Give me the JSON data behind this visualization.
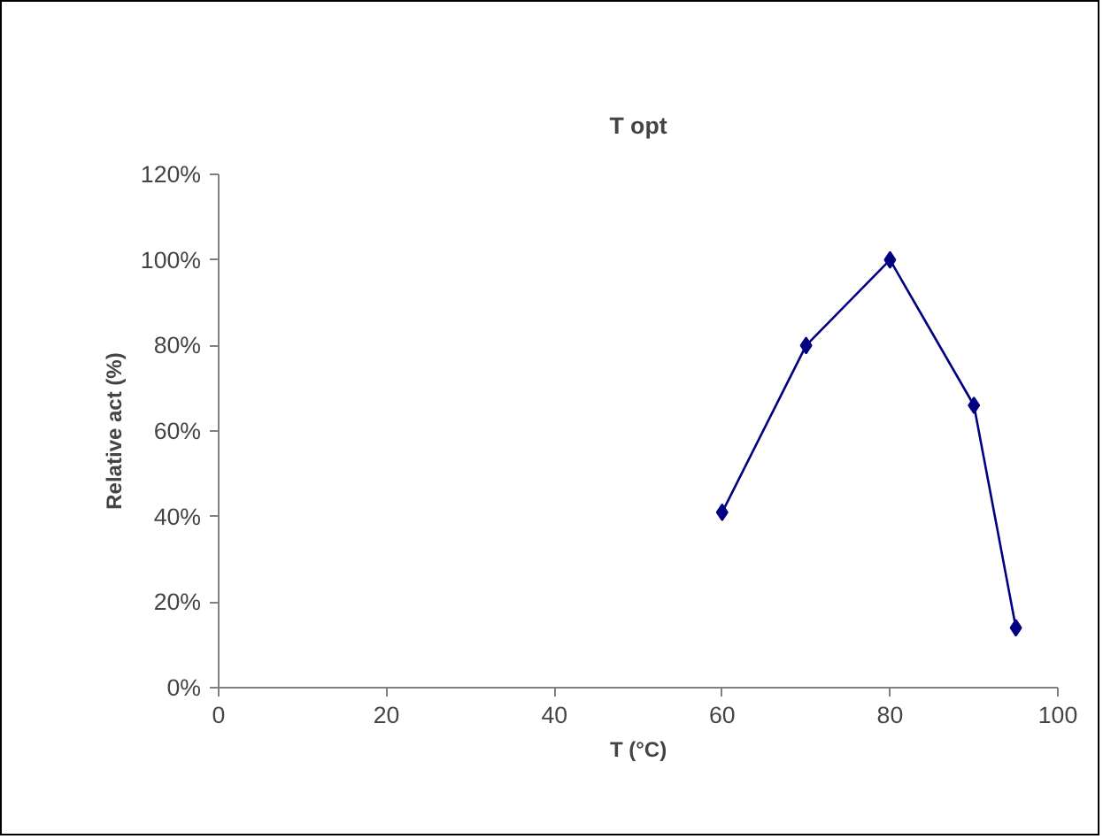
{
  "chart_data": {
    "type": "line",
    "title": "T opt",
    "xlabel": "T (°C)",
    "ylabel": "Relative act (%)",
    "x": [
      60,
      70,
      80,
      90,
      95
    ],
    "series": [
      {
        "color": "#000080",
        "values": [
          41,
          80,
          100,
          66,
          14
        ]
      }
    ],
    "xlim": [
      0,
      100
    ],
    "xticks": [
      0,
      20,
      40,
      60,
      80,
      100
    ],
    "ylim": [
      0,
      120
    ],
    "yticks": [
      {
        "value": 0,
        "label": "0%"
      },
      {
        "value": 20,
        "label": "20%"
      },
      {
        "value": 40,
        "label": "40%"
      },
      {
        "value": 60,
        "label": "60%"
      },
      {
        "value": 80,
        "label": "80%"
      },
      {
        "value": 100,
        "label": "100%"
      },
      {
        "value": 120,
        "label": "120%"
      }
    ],
    "grid": false,
    "marker": "diamond",
    "line_style": "solid"
  }
}
